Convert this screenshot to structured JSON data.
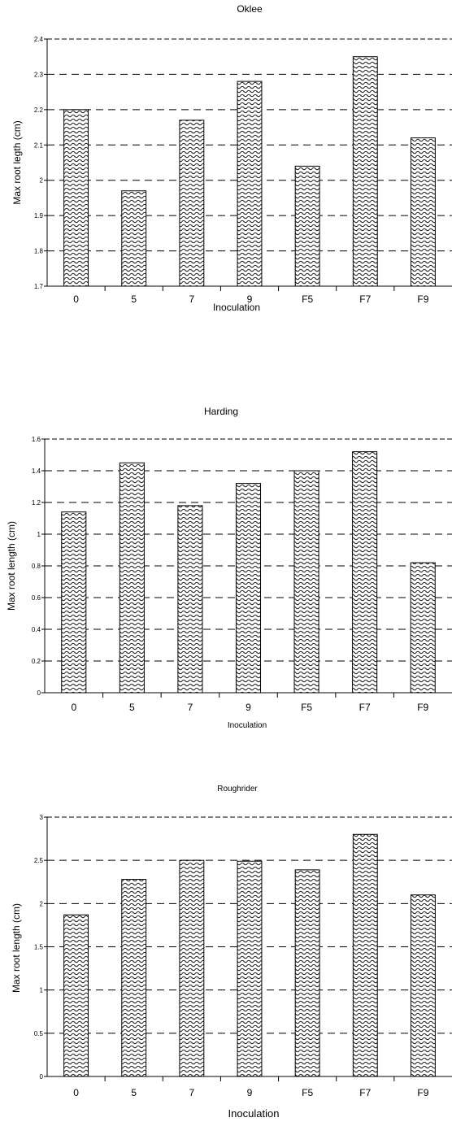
{
  "chart_data": [
    {
      "type": "bar",
      "title": "Oklee",
      "xlabel": "Inoculation",
      "ylabel": "Max root legth (cm)",
      "categories": [
        "0",
        "5",
        "7",
        "9",
        "F5",
        "F7",
        "F9"
      ],
      "values": [
        2.2,
        1.97,
        2.17,
        2.28,
        2.04,
        2.35,
        2.12
      ],
      "ylim": [
        1.7,
        2.4
      ],
      "yticks": [
        "1.7",
        "1.8",
        "1.9",
        "2",
        "2.1",
        "2.2",
        "2.3",
        "2.4"
      ],
      "grid": "dashed horizontal",
      "colors": {
        "bar_fill": "#ffffff",
        "bar_pattern": "#222222",
        "grid": "#000000"
      }
    },
    {
      "type": "bar",
      "title": "Harding",
      "xlabel": "Inoculation",
      "ylabel": "Max root length (cm)",
      "categories": [
        "0",
        "5",
        "7",
        "9",
        "F5",
        "F7",
        "F9"
      ],
      "values": [
        1.14,
        1.45,
        1.18,
        1.32,
        1.4,
        1.52,
        0.82
      ],
      "ylim": [
        0,
        1.6
      ],
      "yticks": [
        "0",
        "0.2",
        "0.4",
        "0.6",
        "0.8",
        "1",
        "1.2",
        "1.4",
        "1.6"
      ],
      "grid": "dashed horizontal",
      "colors": {
        "bar_fill": "#ffffff",
        "bar_pattern": "#222222",
        "grid": "#000000"
      }
    },
    {
      "type": "bar",
      "title": "Roughrider",
      "xlabel": "Inoculation",
      "ylabel": "Max root length (cm)",
      "categories": [
        "0",
        "5",
        "7",
        "9",
        "F5",
        "F7",
        "F9"
      ],
      "values": [
        1.87,
        2.28,
        2.5,
        2.49,
        2.39,
        2.8,
        2.1
      ],
      "ylim": [
        0,
        3
      ],
      "yticks": [
        "0",
        "0.5",
        "1",
        "1.5",
        "2",
        "2.5",
        "3"
      ],
      "grid": "dashed horizontal",
      "colors": {
        "bar_fill": "#ffffff",
        "bar_pattern": "#222222",
        "grid": "#000000"
      }
    }
  ]
}
